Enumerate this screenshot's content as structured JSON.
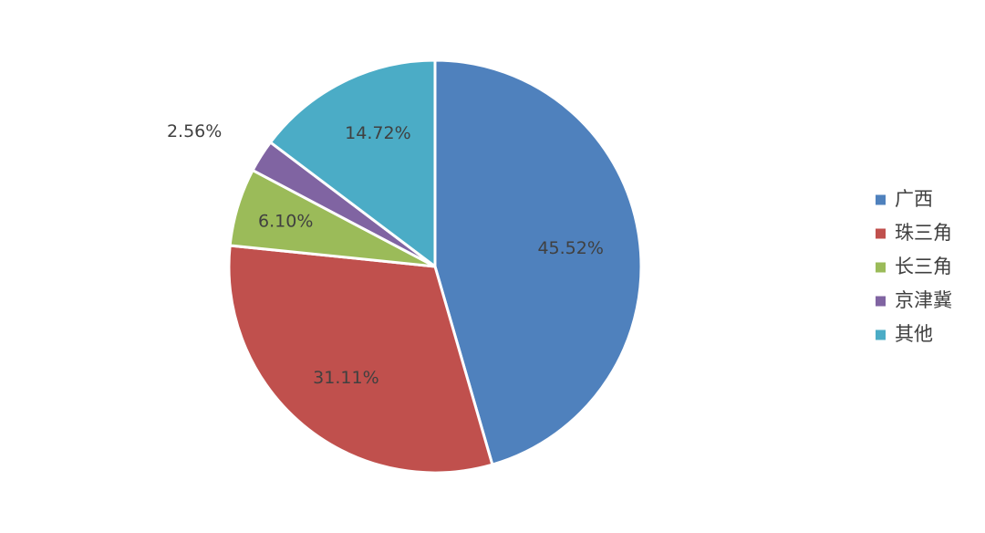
{
  "chart_data": {
    "type": "pie",
    "title": "",
    "legend_position": "right",
    "series": [
      {
        "name": "广西",
        "value": 45.52,
        "label": "45.52%",
        "color": "#4f81bd"
      },
      {
        "name": "珠三角",
        "value": 31.11,
        "label": "31.11%",
        "color": "#c0504d"
      },
      {
        "name": "长三角",
        "value": 6.1,
        "label": "6.10%",
        "color": "#9bbb59"
      },
      {
        "name": "京津冀",
        "value": 2.56,
        "label": "2.56%",
        "color": "#8064a2"
      },
      {
        "name": "其他",
        "value": 14.72,
        "label": "14.72%",
        "color": "#4bacc6"
      }
    ]
  }
}
